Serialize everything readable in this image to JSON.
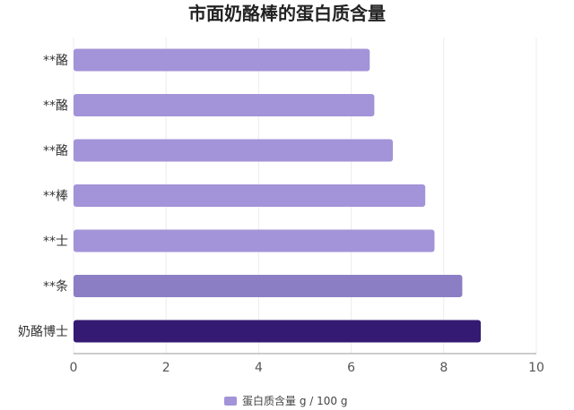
{
  "chart_data": {
    "type": "bar",
    "orientation": "horizontal",
    "title": "市面奶酪棒的蛋白质含量",
    "categories": [
      "**酪",
      "**酪",
      "**酪",
      "**棒",
      "**士",
      "**条",
      "奶酪博士"
    ],
    "series": [
      {
        "name": "蛋白质含量 g / 100 g",
        "values": [
          6.4,
          6.5,
          6.9,
          7.6,
          7.8,
          8.4,
          8.8
        ]
      }
    ],
    "xlim": [
      0,
      10
    ],
    "xticks": [
      0,
      2,
      4,
      6,
      8,
      10
    ],
    "grid": true,
    "legend_position": "bottom-center",
    "colors": {
      "bar_default": "#a393d8",
      "bar_second": "#8c7ec4",
      "bar_highlight": "#341a72",
      "legend_swatch": "#a393d8"
    }
  }
}
